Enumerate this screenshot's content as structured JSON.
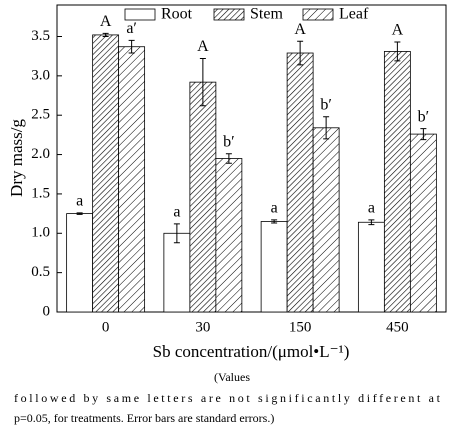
{
  "chart_data": {
    "type": "bar",
    "categories": [
      "0",
      "30",
      "150",
      "450"
    ],
    "series": [
      {
        "name": "Root",
        "color": "#ffffff",
        "hatch": "none",
        "values": [
          1.25,
          1.0,
          1.15,
          1.14
        ],
        "errors": [
          0.01,
          0.12,
          0.02,
          0.03
        ],
        "labels": [
          "a",
          "a",
          "a",
          "a"
        ]
      },
      {
        "name": "Stem",
        "color": "#ffffff",
        "hatch": "dense",
        "values": [
          3.52,
          2.92,
          3.29,
          3.31
        ],
        "errors": [
          0.02,
          0.3,
          0.15,
          0.12
        ],
        "labels": [
          "A",
          "A",
          "A",
          "A"
        ]
      },
      {
        "name": "Leaf",
        "color": "#ffffff",
        "hatch": "sparse",
        "values": [
          3.37,
          1.95,
          2.34,
          2.26
        ],
        "errors": [
          0.08,
          0.06,
          0.14,
          0.07
        ],
        "labels": [
          "a′",
          "b′",
          "b′",
          "b′"
        ]
      }
    ],
    "ylim": [
      0,
      3.9
    ],
    "yticks": [
      0,
      0.5,
      {
        "value": 1,
        "label": "1.0"
      },
      1.5,
      {
        "value": 2,
        "label": "2.0"
      },
      2.5,
      {
        "value": 3,
        "label": "3.0"
      },
      3.5
    ],
    "ylabel": "Dry mass/g",
    "xlabel": "Sb concentration/(μmol•L⁻¹)",
    "legend": "top",
    "grid": false
  },
  "caption": [
    "(Values",
    "followed by same letters are not significantly different at",
    "p=0.05, for treatments. Error bars are standard errors.)"
  ]
}
